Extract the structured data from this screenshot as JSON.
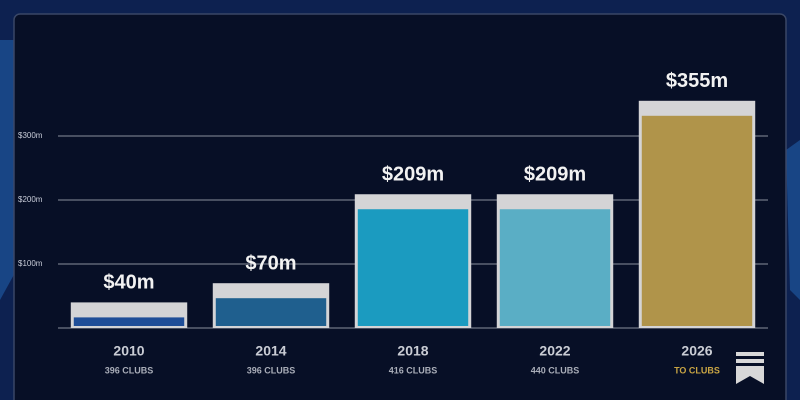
{
  "chart_data": {
    "type": "bar",
    "categories": [
      "2010",
      "2014",
      "2018",
      "2022",
      "2026"
    ],
    "category_sublabels": [
      "396 CLUBS",
      "396 CLUBS",
      "416 CLUBS",
      "440 CLUBS",
      "TO CLUBS"
    ],
    "sublabel_colors": [
      "#a9adb8",
      "#a9adb8",
      "#a9adb8",
      "#a9adb8",
      "#c9a544"
    ],
    "values": [
      40,
      70,
      209,
      209,
      355
    ],
    "value_labels": [
      "$40m",
      "$70m",
      "$209m",
      "$209m",
      "$355m"
    ],
    "colors": [
      "#1f4e98",
      "#1f5f8e",
      "#1b9bc0",
      "#5aaec5",
      "#b0944a"
    ],
    "cap_color": "#d4d4d6",
    "ylim": [
      0,
      400
    ],
    "yticks": [
      {
        "value": 100,
        "label": "$100m"
      },
      {
        "value": 200,
        "label": "$200m"
      },
      {
        "value": 300,
        "label": "$300m"
      }
    ],
    "grid": true
  }
}
